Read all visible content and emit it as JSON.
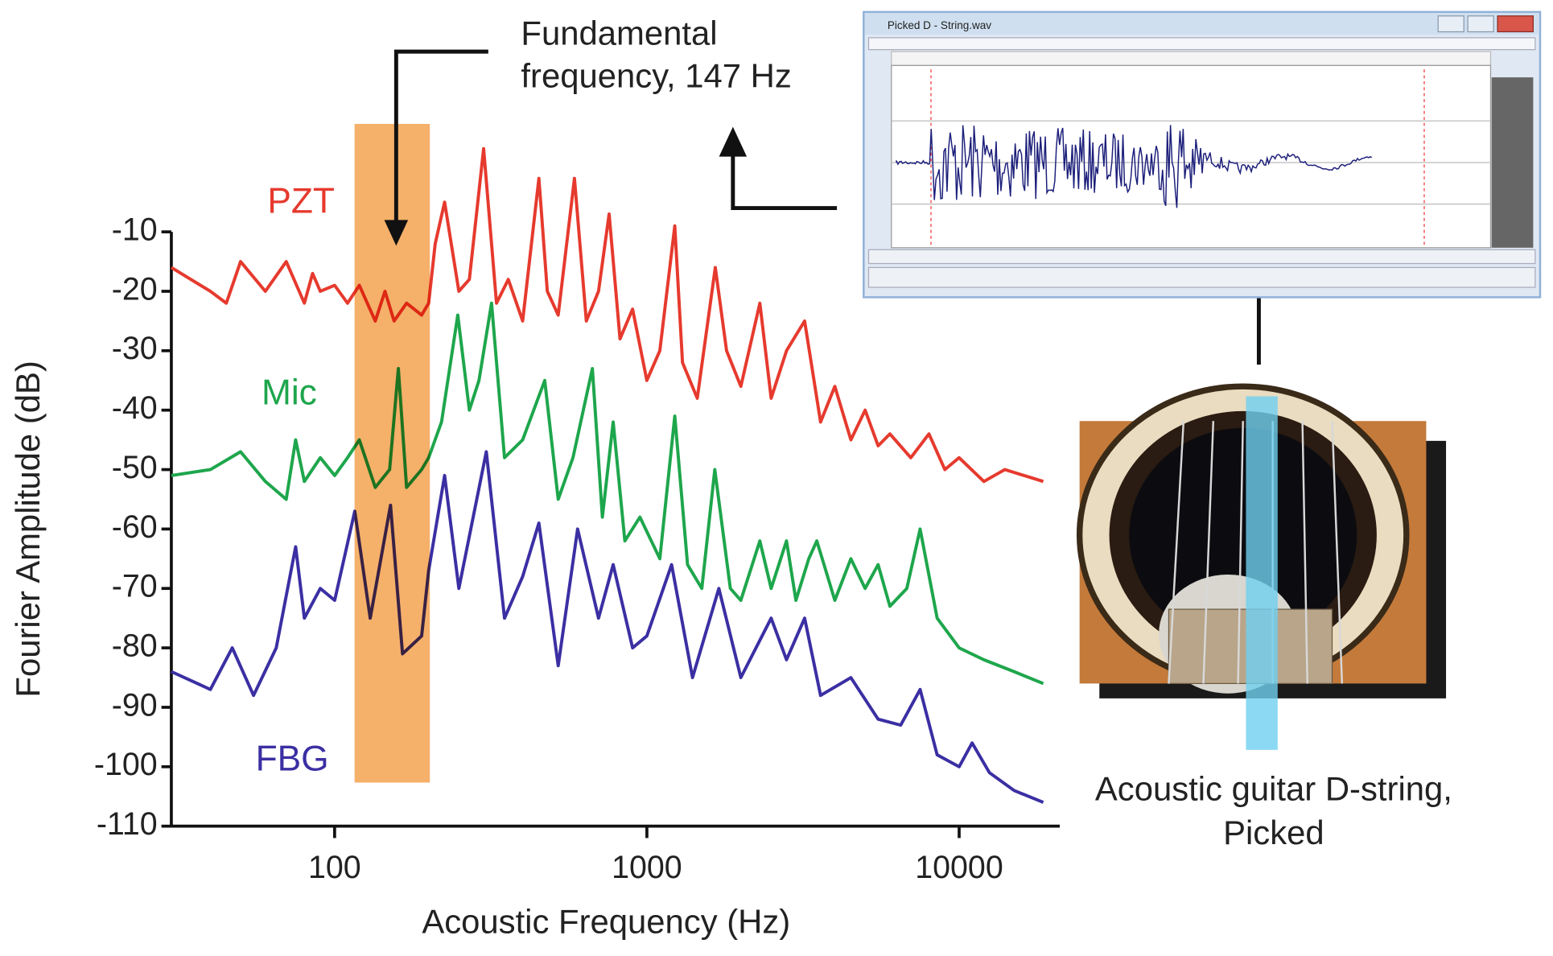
{
  "chart_data": {
    "type": "line",
    "x_label": "Acoustic Frequency (Hz)",
    "y_label": "Fourier Amplitude (dB)",
    "log_x": true,
    "xlim": [
      30,
      21000
    ],
    "xticks": [
      100,
      1000,
      10000
    ],
    "ylim": [
      -110,
      -10
    ],
    "yticks": [
      -10,
      -20,
      -30,
      -40,
      -50,
      -60,
      -70,
      -80,
      -90,
      -100,
      -110
    ],
    "annotation_lines": [
      "Fundamental",
      "frequency, 147 Hz"
    ],
    "caption_lines": [
      "Acoustic guitar D-string,",
      "Picked"
    ],
    "inset_title": "Picked D - String.wav",
    "series": [
      {
        "name": "PZT",
        "color": "#e63a2e",
        "x": [
          30,
          40,
          45,
          50,
          60,
          70,
          80,
          85,
          90,
          100,
          110,
          120,
          135,
          145,
          155,
          170,
          190,
          200,
          210,
          225,
          250,
          270,
          300,
          330,
          360,
          400,
          451,
          480,
          520,
          586,
          640,
          700,
          757,
          820,
          900,
          1000,
          1100,
          1228,
          1300,
          1450,
          1656,
          1800,
          2000,
          2300,
          2500,
          2800,
          3200,
          3600,
          4000,
          4500,
          5000,
          5500,
          6000,
          7000,
          8000,
          9000,
          10000,
          12000,
          14000,
          18600
        ],
        "values": [
          -16,
          -20,
          -22,
          -15,
          -20,
          -15,
          -22,
          -17,
          -20,
          -19,
          -22,
          -19,
          -25,
          -20,
          -25,
          -22,
          -24,
          -22,
          -12,
          -5,
          -20,
          -18,
          4,
          -22,
          -18,
          -25,
          -1,
          -20,
          -24,
          -1,
          -25,
          -20,
          -7,
          -28,
          -23,
          -35,
          -30,
          -9,
          -32,
          -38,
          -16,
          -30,
          -36,
          -22,
          -38,
          -30,
          -25,
          -42,
          -36,
          -45,
          -40,
          -46,
          -44,
          -48,
          -44,
          -50,
          -48,
          -52,
          -50,
          -52
        ]
      },
      {
        "name": "Mic",
        "color": "#1ea64c",
        "x": [
          30,
          40,
          50,
          60,
          70,
          75,
          80,
          90,
          100,
          110,
          120,
          135,
          150,
          160,
          170,
          190,
          200,
          220,
          248,
          270,
          290,
          318,
          350,
          400,
          471,
          520,
          580,
          669,
          720,
          780,
          850,
          950,
          1100,
          1228,
          1350,
          1500,
          1650,
          1850,
          2000,
          2300,
          2500,
          2800,
          3000,
          3300,
          3500,
          4000,
          4500,
          5000,
          5500,
          6000,
          6800,
          7500,
          8500,
          10000,
          12000,
          15000,
          18600
        ],
        "values": [
          -51,
          -50,
          -47,
          -52,
          -55,
          -45,
          -52,
          -48,
          -51,
          -48,
          -45,
          -53,
          -50,
          -33,
          -53,
          -50,
          -48,
          -42,
          -24,
          -40,
          -35,
          -22,
          -48,
          -45,
          -35,
          -55,
          -48,
          -33,
          -58,
          -42,
          -62,
          -58,
          -65,
          -41,
          -66,
          -70,
          -50,
          -70,
          -72,
          -62,
          -70,
          -62,
          -72,
          -65,
          -62,
          -72,
          -65,
          -70,
          -66,
          -73,
          -70,
          -60,
          -75,
          -80,
          -82,
          -84,
          -86
        ]
      },
      {
        "name": "FBG",
        "color": "#3b2fa3",
        "x": [
          30,
          40,
          47,
          55,
          65,
          75,
          80,
          90,
          100,
          116,
          130,
          151,
          165,
          190,
          200,
          225,
          250,
          306,
          350,
          400,
          451,
          520,
          600,
          700,
          780,
          900,
          1000,
          1200,
          1400,
          1700,
          2000,
          2500,
          2800,
          3200,
          3600,
          4500,
          5500,
          6500,
          7500,
          8500,
          10000,
          11000,
          12500,
          15000,
          18600
        ],
        "values": [
          -84,
          -87,
          -80,
          -88,
          -80,
          -63,
          -75,
          -70,
          -72,
          -57,
          -75,
          -56,
          -81,
          -78,
          -67,
          -51,
          -70,
          -47,
          -75,
          -68,
          -59,
          -83,
          -60,
          -75,
          -66,
          -80,
          -78,
          -66,
          -85,
          -70,
          -85,
          -75,
          -82,
          -75,
          -88,
          -85,
          -92,
          -93,
          -87,
          -98,
          -100,
          -96,
          -101,
          -104,
          -106
        ]
      }
    ]
  }
}
